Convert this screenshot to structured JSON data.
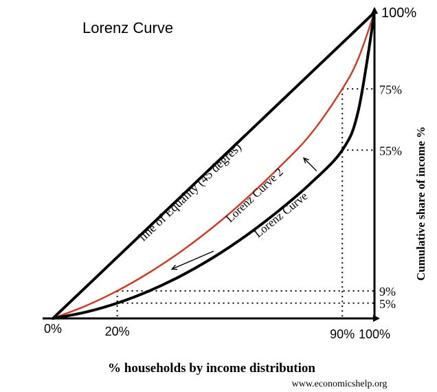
{
  "chart_data": {
    "type": "line",
    "title": "Lorenz Curve",
    "xlabel": "% households by income distribution",
    "ylabel": "Cumulative share of income %",
    "xlim": [
      0,
      100
    ],
    "ylim": [
      0,
      100
    ],
    "x_ticks": [
      {
        "value": 0,
        "label": "0%"
      },
      {
        "value": 20,
        "label": "20%"
      },
      {
        "value": 90,
        "label": "90%"
      },
      {
        "value": 100,
        "label": "100%"
      }
    ],
    "y_ticks": [
      {
        "value": 100,
        "label": "100%"
      },
      {
        "value": 75,
        "label": "75%"
      },
      {
        "value": 55,
        "label": "55%"
      },
      {
        "value": 9,
        "label": "9%"
      },
      {
        "value": 5,
        "label": "5%"
      }
    ],
    "reference_lines": [
      {
        "x": 20,
        "y": 9
      },
      {
        "x": 20,
        "y": 5
      },
      {
        "x": 90,
        "y": 75
      },
      {
        "x": 90,
        "y": 55
      }
    ],
    "series": [
      {
        "name": "line of Equality (45 degres)",
        "color": "#000000",
        "x": [
          0,
          100
        ],
        "y": [
          0,
          100
        ]
      },
      {
        "name": "Lorenz Curve 2",
        "color": "#cc3b26",
        "x": [
          0,
          10,
          20,
          30,
          40,
          50,
          60,
          70,
          80,
          90,
          95,
          100
        ],
        "y": [
          0,
          4,
          9,
          15,
          22,
          30,
          39,
          49,
          60,
          75,
          85,
          100
        ]
      },
      {
        "name": "Lorenz Curve",
        "color": "#000000",
        "x": [
          0,
          10,
          20,
          30,
          40,
          50,
          60,
          70,
          80,
          90,
          95,
          100
        ],
        "y": [
          0,
          2,
          5,
          9,
          14,
          20,
          27,
          35,
          44,
          55,
          68,
          100
        ]
      }
    ],
    "annotations": [
      "shift arrows pointing from Lorenz Curve toward Lorenz Curve 2"
    ],
    "source": "www.economicshelp.org"
  }
}
